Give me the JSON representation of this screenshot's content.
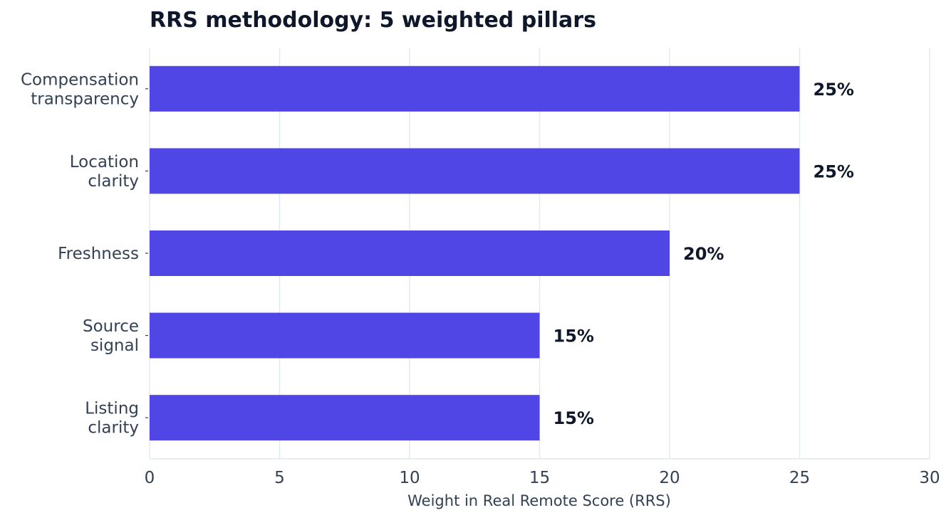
{
  "chart_data": {
    "type": "bar",
    "orientation": "horizontal",
    "title": "RRS methodology: 5 weighted pillars",
    "xlabel": "Weight in Real Remote Score (RRS)",
    "ylabel": "",
    "xlim": [
      0,
      30
    ],
    "xticks": [
      0,
      5,
      10,
      15,
      20,
      25,
      30
    ],
    "grid": "vertical",
    "bar_color": "#4f46e5",
    "categories": [
      [
        "Compensation",
        "transparency"
      ],
      [
        "Location",
        "clarity"
      ],
      [
        "Freshness"
      ],
      [
        "Source",
        "signal"
      ],
      [
        "Listing",
        "clarity"
      ]
    ],
    "values": [
      25,
      25,
      20,
      15,
      15
    ],
    "value_labels": [
      "25%",
      "25%",
      "20%",
      "15%",
      "15%"
    ]
  }
}
